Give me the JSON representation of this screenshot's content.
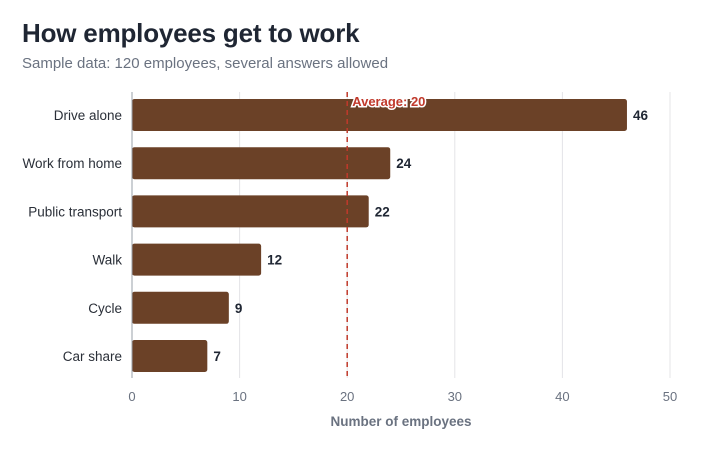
{
  "title": "How employees get to work",
  "subtitle": "Sample data: 120 employees, several answers allowed",
  "colors": {
    "bar": "#6b4127",
    "average_line": "#c0392b",
    "grid": "#e4e4e7",
    "axis": "#9aa0a8"
  },
  "chart_data": {
    "type": "bar",
    "orientation": "horizontal",
    "categories": [
      "Drive alone",
      "Work from home",
      "Public transport",
      "Walk",
      "Cycle",
      "Car share"
    ],
    "values": [
      46,
      24,
      22,
      12,
      9,
      7
    ],
    "title": "How employees get to work",
    "subtitle": "Sample data: 120 employees, several answers allowed",
    "xlabel": "Number of employees",
    "ylabel": "",
    "xlim": [
      0,
      50
    ],
    "xticks": [
      0,
      10,
      20,
      30,
      40,
      50
    ],
    "grid": "vertical",
    "data_labels": true,
    "reference_line": {
      "value": 20,
      "label": "Average: 20",
      "style": "dashed"
    }
  }
}
